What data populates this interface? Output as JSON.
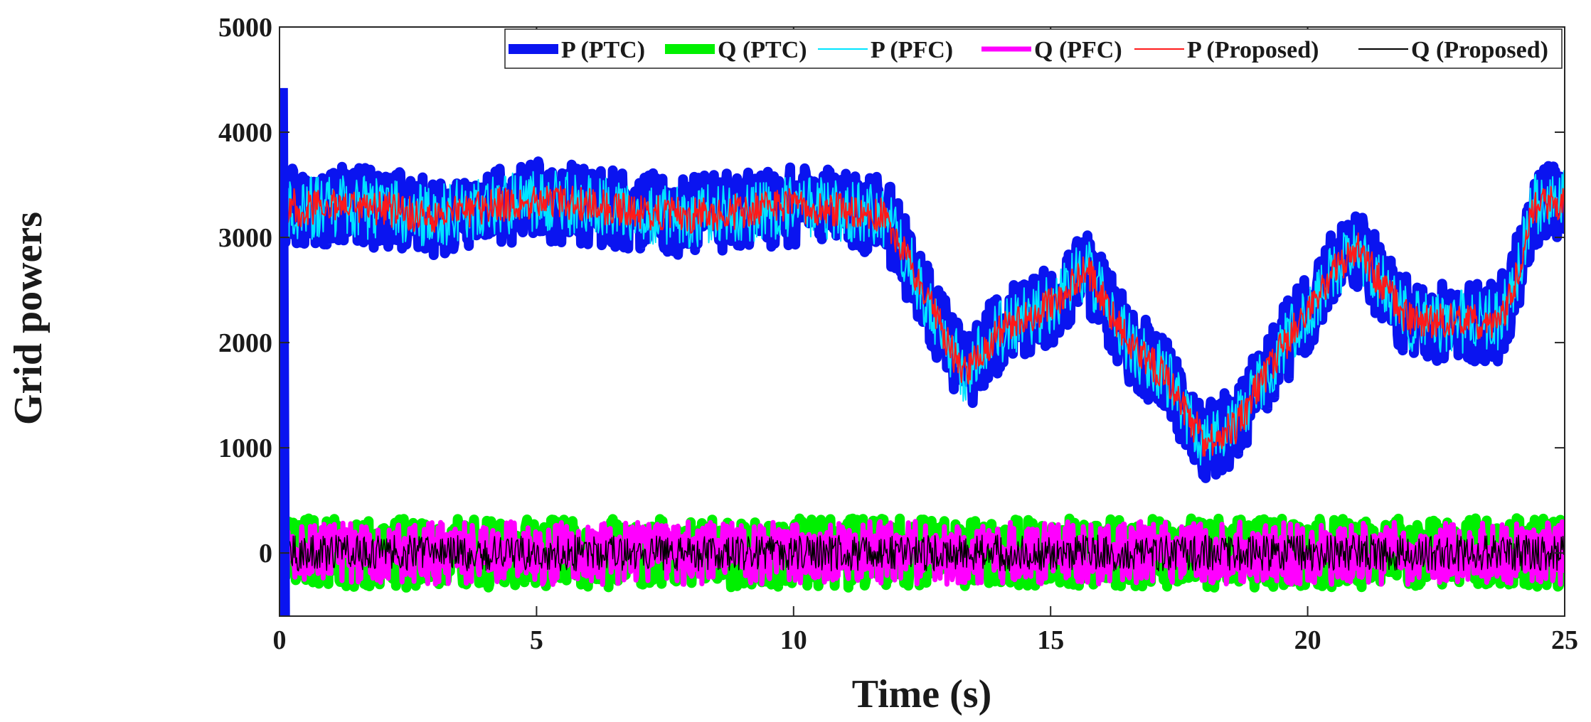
{
  "chart_data": {
    "type": "line",
    "title": "",
    "xlabel": "Time (s)",
    "ylabel": "Grid powers",
    "xlim": [
      0,
      25
    ],
    "ylim": [
      -600,
      5000
    ],
    "xticks": [
      0,
      5,
      10,
      15,
      20,
      25
    ],
    "yticks": [
      0,
      1000,
      2000,
      3000,
      4000,
      5000
    ],
    "grid": false,
    "legend_position": "top-right",
    "active_power_profile": {
      "x": [
        0,
        1,
        2,
        3,
        4,
        5,
        6,
        7,
        8,
        9,
        10,
        11,
        11.8,
        12.5,
        13.3,
        14,
        15,
        15.7,
        16.5,
        17.2,
        18,
        18.6,
        19.3,
        20,
        20.5,
        21,
        21.5,
        22,
        23,
        23.7,
        24,
        24.4,
        25
      ],
      "y": [
        3250,
        3300,
        3270,
        3200,
        3300,
        3350,
        3300,
        3250,
        3200,
        3250,
        3300,
        3250,
        3200,
        2500,
        1700,
        2100,
        2350,
        2700,
        2000,
        1700,
        1050,
        1200,
        1800,
        2300,
        2700,
        2900,
        2500,
        2200,
        2200,
        2200,
        2500,
        3300,
        3350
      ]
    },
    "reactive_power_profile": {
      "x": [
        0,
        25
      ],
      "y": [
        0,
        0
      ]
    },
    "series": [
      {
        "name": "P (PTC)",
        "color": "#0a14f0",
        "kind": "P",
        "noise": 380,
        "line_width": 14
      },
      {
        "name": "Q (PTC)",
        "color": "#00f000",
        "kind": "Q",
        "noise": 330,
        "line_width": 14
      },
      {
        "name": "P (PFC)",
        "color": "#00e5ff",
        "kind": "P",
        "noise": 300,
        "line_width": 2
      },
      {
        "name": "Q (PFC)",
        "color": "#ff00ff",
        "kind": "Q",
        "noise": 300,
        "line_width": 7
      },
      {
        "name": "P (Proposed)",
        "color": "#ff1a1a",
        "kind": "P",
        "noise": 170,
        "line_width": 2
      },
      {
        "name": "Q (Proposed)",
        "color": "#000000",
        "kind": "Q",
        "noise": 170,
        "line_width": 1.5
      }
    ],
    "startup_spike": {
      "series": "P (PTC)",
      "t": [
        0,
        0.08,
        0.12
      ],
      "y": [
        -600,
        4420,
        -600
      ]
    }
  }
}
